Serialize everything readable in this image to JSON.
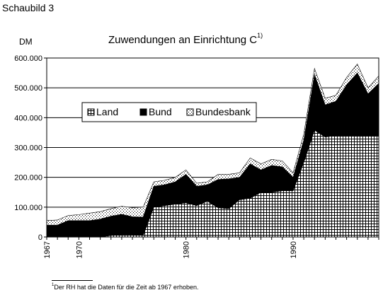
{
  "figure_label": "Schaubild 3",
  "title": "Zuwendungen an Einrichtung  C",
  "title_superscript": "1)",
  "ylabel": "DM",
  "footnote_marker": "1",
  "footnote_text": "Der RH hat die Daten für die Zeit ab 1967 erhoben.",
  "colors": {
    "background": "#ffffff",
    "land_fill": "pattern-grid",
    "bund_fill": "#000000",
    "bundesbank_fill": "pattern-dots"
  },
  "chart_data": {
    "type": "area",
    "stacked": true,
    "title": "Zuwendungen an Einrichtung  C",
    "ylabel": "DM",
    "xlabel": "",
    "x": [
      1967,
      1968,
      1969,
      1970,
      1971,
      1972,
      1973,
      1974,
      1975,
      1976,
      1977,
      1978,
      1979,
      1980,
      1981,
      1982,
      1983,
      1984,
      1985,
      1986,
      1987,
      1988,
      1989,
      1990,
      1991,
      1992,
      1993,
      1994,
      1995,
      1996,
      1997,
      1998
    ],
    "xlim": [
      1967,
      1998
    ],
    "xticks": [
      "1967",
      "1970",
      "1980",
      "1990"
    ],
    "xtick_values": [
      1967,
      1970,
      1980,
      1990
    ],
    "ylim": [
      0,
      600000
    ],
    "yticks": [
      "0",
      "100.000",
      "200.000",
      "300.000",
      "400.000",
      "500.000",
      "600.000"
    ],
    "ytick_values": [
      0,
      100000,
      200000,
      300000,
      400000,
      500000,
      600000
    ],
    "grid": "horizontal",
    "legend_position": "center-left",
    "series": [
      {
        "name": "Land",
        "fill": "grid",
        "values": [
          0,
          0,
          0,
          0,
          0,
          0,
          5000,
          8000,
          8000,
          5000,
          100000,
          105000,
          110000,
          115000,
          105000,
          120000,
          98000,
          95000,
          125000,
          130000,
          150000,
          150000,
          155000,
          155000,
          250000,
          358000,
          335000,
          340000,
          340000,
          340000,
          340000,
          340000
        ]
      },
      {
        "name": "Bund",
        "fill": "black",
        "values": [
          40000,
          40000,
          55000,
          55000,
          55000,
          60000,
          65000,
          68000,
          60000,
          62000,
          70000,
          70000,
          75000,
          95000,
          65000,
          55000,
          95000,
          100000,
          75000,
          115000,
          75000,
          90000,
          80000,
          45000,
          75000,
          187000,
          108000,
          115000,
          170000,
          210000,
          140000,
          175000
        ]
      },
      {
        "name": "Bundesbank",
        "fill": "dots",
        "values": [
          15000,
          17000,
          17000,
          20000,
          25000,
          25000,
          25000,
          27000,
          30000,
          33000,
          15000,
          15000,
          15000,
          15000,
          10000,
          10000,
          17000,
          15000,
          15000,
          20000,
          20000,
          20000,
          20000,
          15000,
          20000,
          20000,
          22000,
          20000,
          25000,
          30000,
          20000,
          25000
        ]
      }
    ]
  }
}
